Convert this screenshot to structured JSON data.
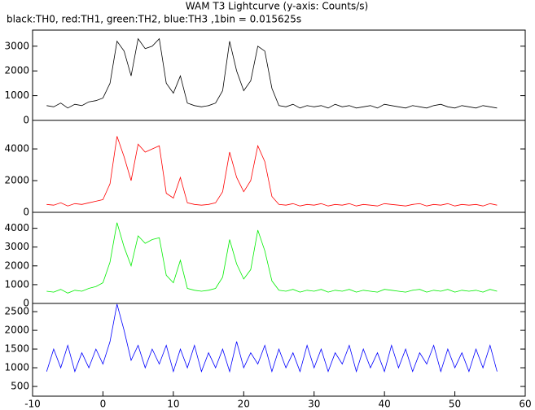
{
  "chart_data": [
    {
      "type": "line",
      "title": "WAM T3 Lightcurve (y-axis: Counts/s)",
      "subtitle": "black:TH0, red:TH1, green:TH2, blue:TH3 ,1bin = 0.015625s",
      "color": "#000000",
      "x": [
        -8,
        -7,
        -6,
        -5,
        -4,
        -3,
        -2,
        -1,
        0,
        1,
        2,
        3,
        4,
        5,
        6,
        7,
        8,
        9,
        10,
        11,
        12,
        13,
        14,
        15,
        16,
        17,
        18,
        19,
        20,
        21,
        22,
        23,
        24,
        25,
        26,
        27,
        28,
        29,
        30,
        31,
        32,
        33,
        34,
        35,
        36,
        37,
        38,
        39,
        40,
        41,
        42,
        43,
        44,
        45,
        46,
        47,
        48,
        49,
        50,
        51,
        52,
        53,
        54,
        55,
        56
      ],
      "values": [
        600,
        550,
        700,
        500,
        650,
        600,
        750,
        800,
        900,
        1500,
        3200,
        2800,
        1800,
        3300,
        2900,
        3000,
        3300,
        1500,
        1100,
        1800,
        700,
        600,
        550,
        600,
        700,
        1200,
        3200,
        2000,
        1200,
        1600,
        3000,
        2800,
        1300,
        600,
        550,
        650,
        500,
        600,
        550,
        600,
        500,
        650,
        550,
        600,
        500,
        550,
        600,
        500,
        650,
        600,
        550,
        500,
        600,
        550,
        500,
        600,
        650,
        550,
        500,
        600,
        550,
        500,
        600,
        550,
        500
      ],
      "xlim": [
        -10,
        60
      ],
      "ylim": [
        0,
        3650
      ],
      "yticks": [
        0,
        1000,
        2000,
        3000
      ]
    },
    {
      "type": "line",
      "color": "#ff0000",
      "x": [
        -8,
        -7,
        -6,
        -5,
        -4,
        -3,
        -2,
        -1,
        0,
        1,
        2,
        3,
        4,
        5,
        6,
        7,
        8,
        9,
        10,
        11,
        12,
        13,
        14,
        15,
        16,
        17,
        18,
        19,
        20,
        21,
        22,
        23,
        24,
        25,
        26,
        27,
        28,
        29,
        30,
        31,
        32,
        33,
        34,
        35,
        36,
        37,
        38,
        39,
        40,
        41,
        42,
        43,
        44,
        45,
        46,
        47,
        48,
        49,
        50,
        51,
        52,
        53,
        54,
        55,
        56
      ],
      "values": [
        500,
        450,
        600,
        400,
        550,
        500,
        600,
        700,
        800,
        1800,
        4800,
        3500,
        2000,
        4300,
        3800,
        4000,
        4200,
        1200,
        900,
        2200,
        600,
        500,
        450,
        500,
        600,
        1300,
        3800,
        2200,
        1300,
        2000,
        4200,
        3200,
        1000,
        500,
        450,
        550,
        400,
        500,
        450,
        550,
        400,
        500,
        450,
        550,
        400,
        500,
        450,
        400,
        550,
        500,
        450,
        400,
        500,
        550,
        400,
        500,
        450,
        550,
        400,
        500,
        450,
        500,
        400,
        550,
        450
      ],
      "xlim": [
        -10,
        60
      ],
      "ylim": [
        0,
        5800
      ],
      "yticks": [
        0,
        2000,
        4000
      ]
    },
    {
      "type": "line",
      "color": "#00ee00",
      "x": [
        -8,
        -7,
        -6,
        -5,
        -4,
        -3,
        -2,
        -1,
        0,
        1,
        2,
        3,
        4,
        5,
        6,
        7,
        8,
        9,
        10,
        11,
        12,
        13,
        14,
        15,
        16,
        17,
        18,
        19,
        20,
        21,
        22,
        23,
        24,
        25,
        26,
        27,
        28,
        29,
        30,
        31,
        32,
        33,
        34,
        35,
        36,
        37,
        38,
        39,
        40,
        41,
        42,
        43,
        44,
        45,
        46,
        47,
        48,
        49,
        50,
        51,
        52,
        53,
        54,
        55,
        56
      ],
      "values": [
        650,
        600,
        750,
        550,
        700,
        650,
        800,
        900,
        1100,
        2200,
        4300,
        3000,
        2000,
        3600,
        3200,
        3400,
        3500,
        1500,
        1100,
        2300,
        800,
        700,
        650,
        700,
        800,
        1400,
        3400,
        2100,
        1300,
        1800,
        3900,
        2800,
        1200,
        700,
        650,
        750,
        600,
        700,
        650,
        750,
        600,
        700,
        650,
        750,
        600,
        700,
        650,
        600,
        750,
        700,
        650,
        600,
        700,
        750,
        600,
        700,
        650,
        750,
        600,
        700,
        650,
        700,
        600,
        750,
        650
      ],
      "xlim": [
        -10,
        60
      ],
      "ylim": [
        0,
        4850
      ],
      "yticks": [
        0,
        1000,
        2000,
        3000,
        4000
      ]
    },
    {
      "type": "line",
      "color": "#0000ff",
      "x": [
        -8,
        -7,
        -6,
        -5,
        -4,
        -3,
        -2,
        -1,
        0,
        1,
        2,
        3,
        4,
        5,
        6,
        7,
        8,
        9,
        10,
        11,
        12,
        13,
        14,
        15,
        16,
        17,
        18,
        19,
        20,
        21,
        22,
        23,
        24,
        25,
        26,
        27,
        28,
        29,
        30,
        31,
        32,
        33,
        34,
        35,
        36,
        37,
        38,
        39,
        40,
        41,
        42,
        43,
        44,
        45,
        46,
        47,
        48,
        49,
        50,
        51,
        52,
        53,
        54,
        55,
        56
      ],
      "values": [
        900,
        1500,
        1000,
        1600,
        900,
        1400,
        1000,
        1500,
        1100,
        1700,
        2700,
        2000,
        1200,
        1600,
        1000,
        1500,
        1100,
        1600,
        900,
        1500,
        1000,
        1600,
        900,
        1400,
        1000,
        1500,
        900,
        1700,
        1000,
        1400,
        1100,
        1600,
        900,
        1500,
        1000,
        1400,
        900,
        1600,
        1000,
        1500,
        900,
        1400,
        1100,
        1600,
        900,
        1500,
        1000,
        1400,
        900,
        1600,
        1000,
        1500,
        900,
        1400,
        1100,
        1600,
        900,
        1500,
        1000,
        1400,
        900,
        1500,
        1000,
        1600,
        900
      ],
      "xlim": [
        -10,
        60
      ],
      "ylim": [
        240,
        2720
      ],
      "yticks": [
        500,
        1000,
        1500,
        2000,
        2500
      ],
      "xticks": [
        -10,
        0,
        10,
        20,
        30,
        40,
        50,
        60
      ]
    }
  ]
}
